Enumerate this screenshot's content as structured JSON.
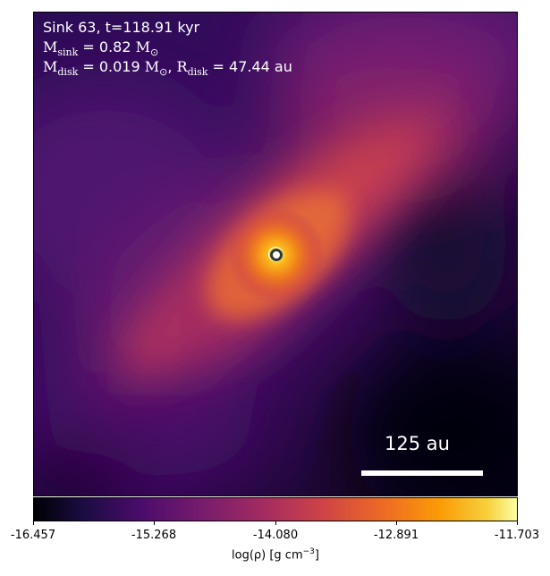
{
  "info": {
    "title": "Sink 63, t=118.91 kyr",
    "m_sink_symbol": "M",
    "m_sink_sub": "sink",
    "m_sink_value": "= 0.82",
    "m_disk_symbol": "M",
    "m_disk_sub": "disk",
    "m_disk_value": "= 0.019",
    "r_disk_symbol": "R",
    "r_disk_sub": "disk",
    "r_disk_value": "= 47.44 au",
    "solar_mass_unit": "M",
    "solar_symbol": "⊙"
  },
  "scale_bar": {
    "label": "125 au"
  },
  "colorbar": {
    "ticks": [
      "-16.457",
      "-15.268",
      "-14.080",
      "-12.891",
      "-11.703"
    ],
    "label_prefix": "log(ρ) [g cm",
    "label_exp": "−3",
    "label_suffix": "]"
  }
}
